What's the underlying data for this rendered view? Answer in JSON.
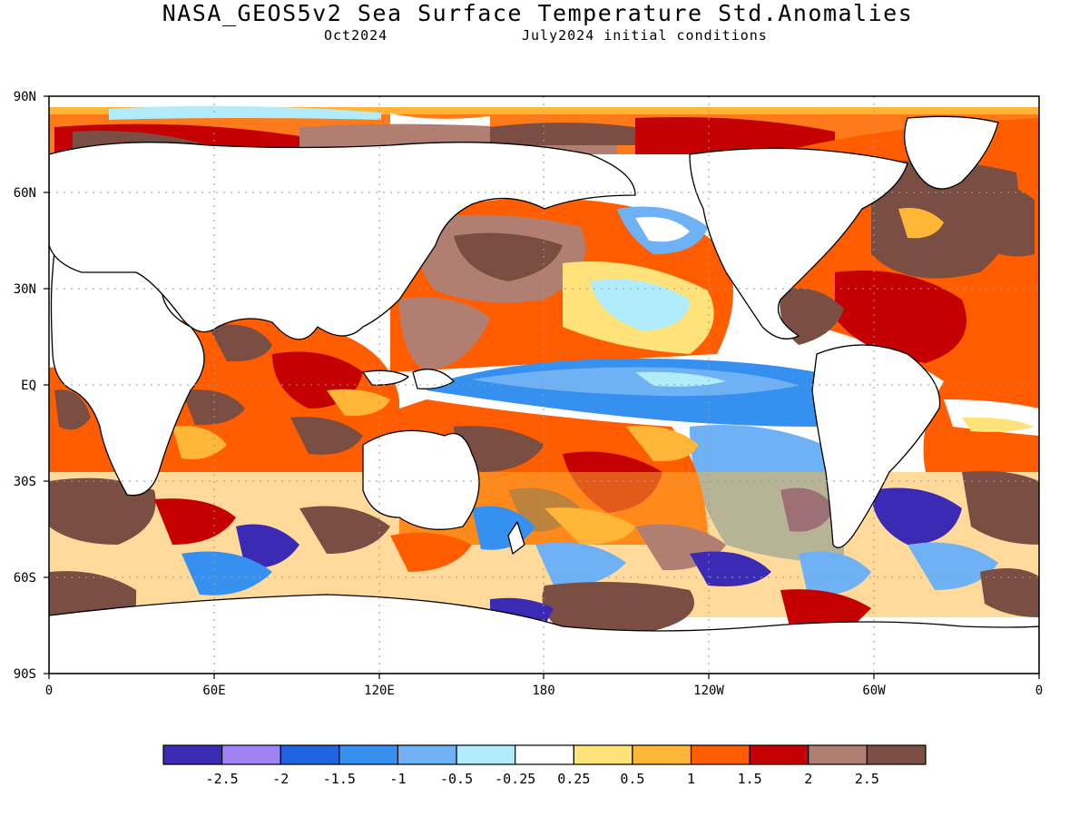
{
  "header": {
    "title": "NASA_GEOS5v2 Sea Surface Temperature Std.Anomalies",
    "subtitle_left": "Oct2024",
    "subtitle_right": "July2024 initial conditions"
  },
  "map": {
    "lat_labels": [
      "90N",
      "60N",
      "30N",
      "EQ",
      "30S",
      "60S",
      "90S"
    ],
    "lon_labels": [
      "0",
      "60E",
      "120E",
      "180",
      "120W",
      "60W",
      "0"
    ],
    "projection": "equirectangular"
  },
  "colorbar": {
    "colors": [
      "#3b2bb4",
      "#9f83f5",
      "#1f63e0",
      "#3690f0",
      "#6eb1f5",
      "#b0ecfb",
      "#ffffff",
      "#ffe27a",
      "#ffb636",
      "#ff5d00",
      "#c40000",
      "#b07f72",
      "#7a4e42"
    ],
    "labels": [
      "-2.5",
      "-2",
      "-1.5",
      "-1",
      "-0.5",
      "-0.25",
      "0.25",
      "0.5",
      "1",
      "1.5",
      "2",
      "2.5"
    ]
  }
}
